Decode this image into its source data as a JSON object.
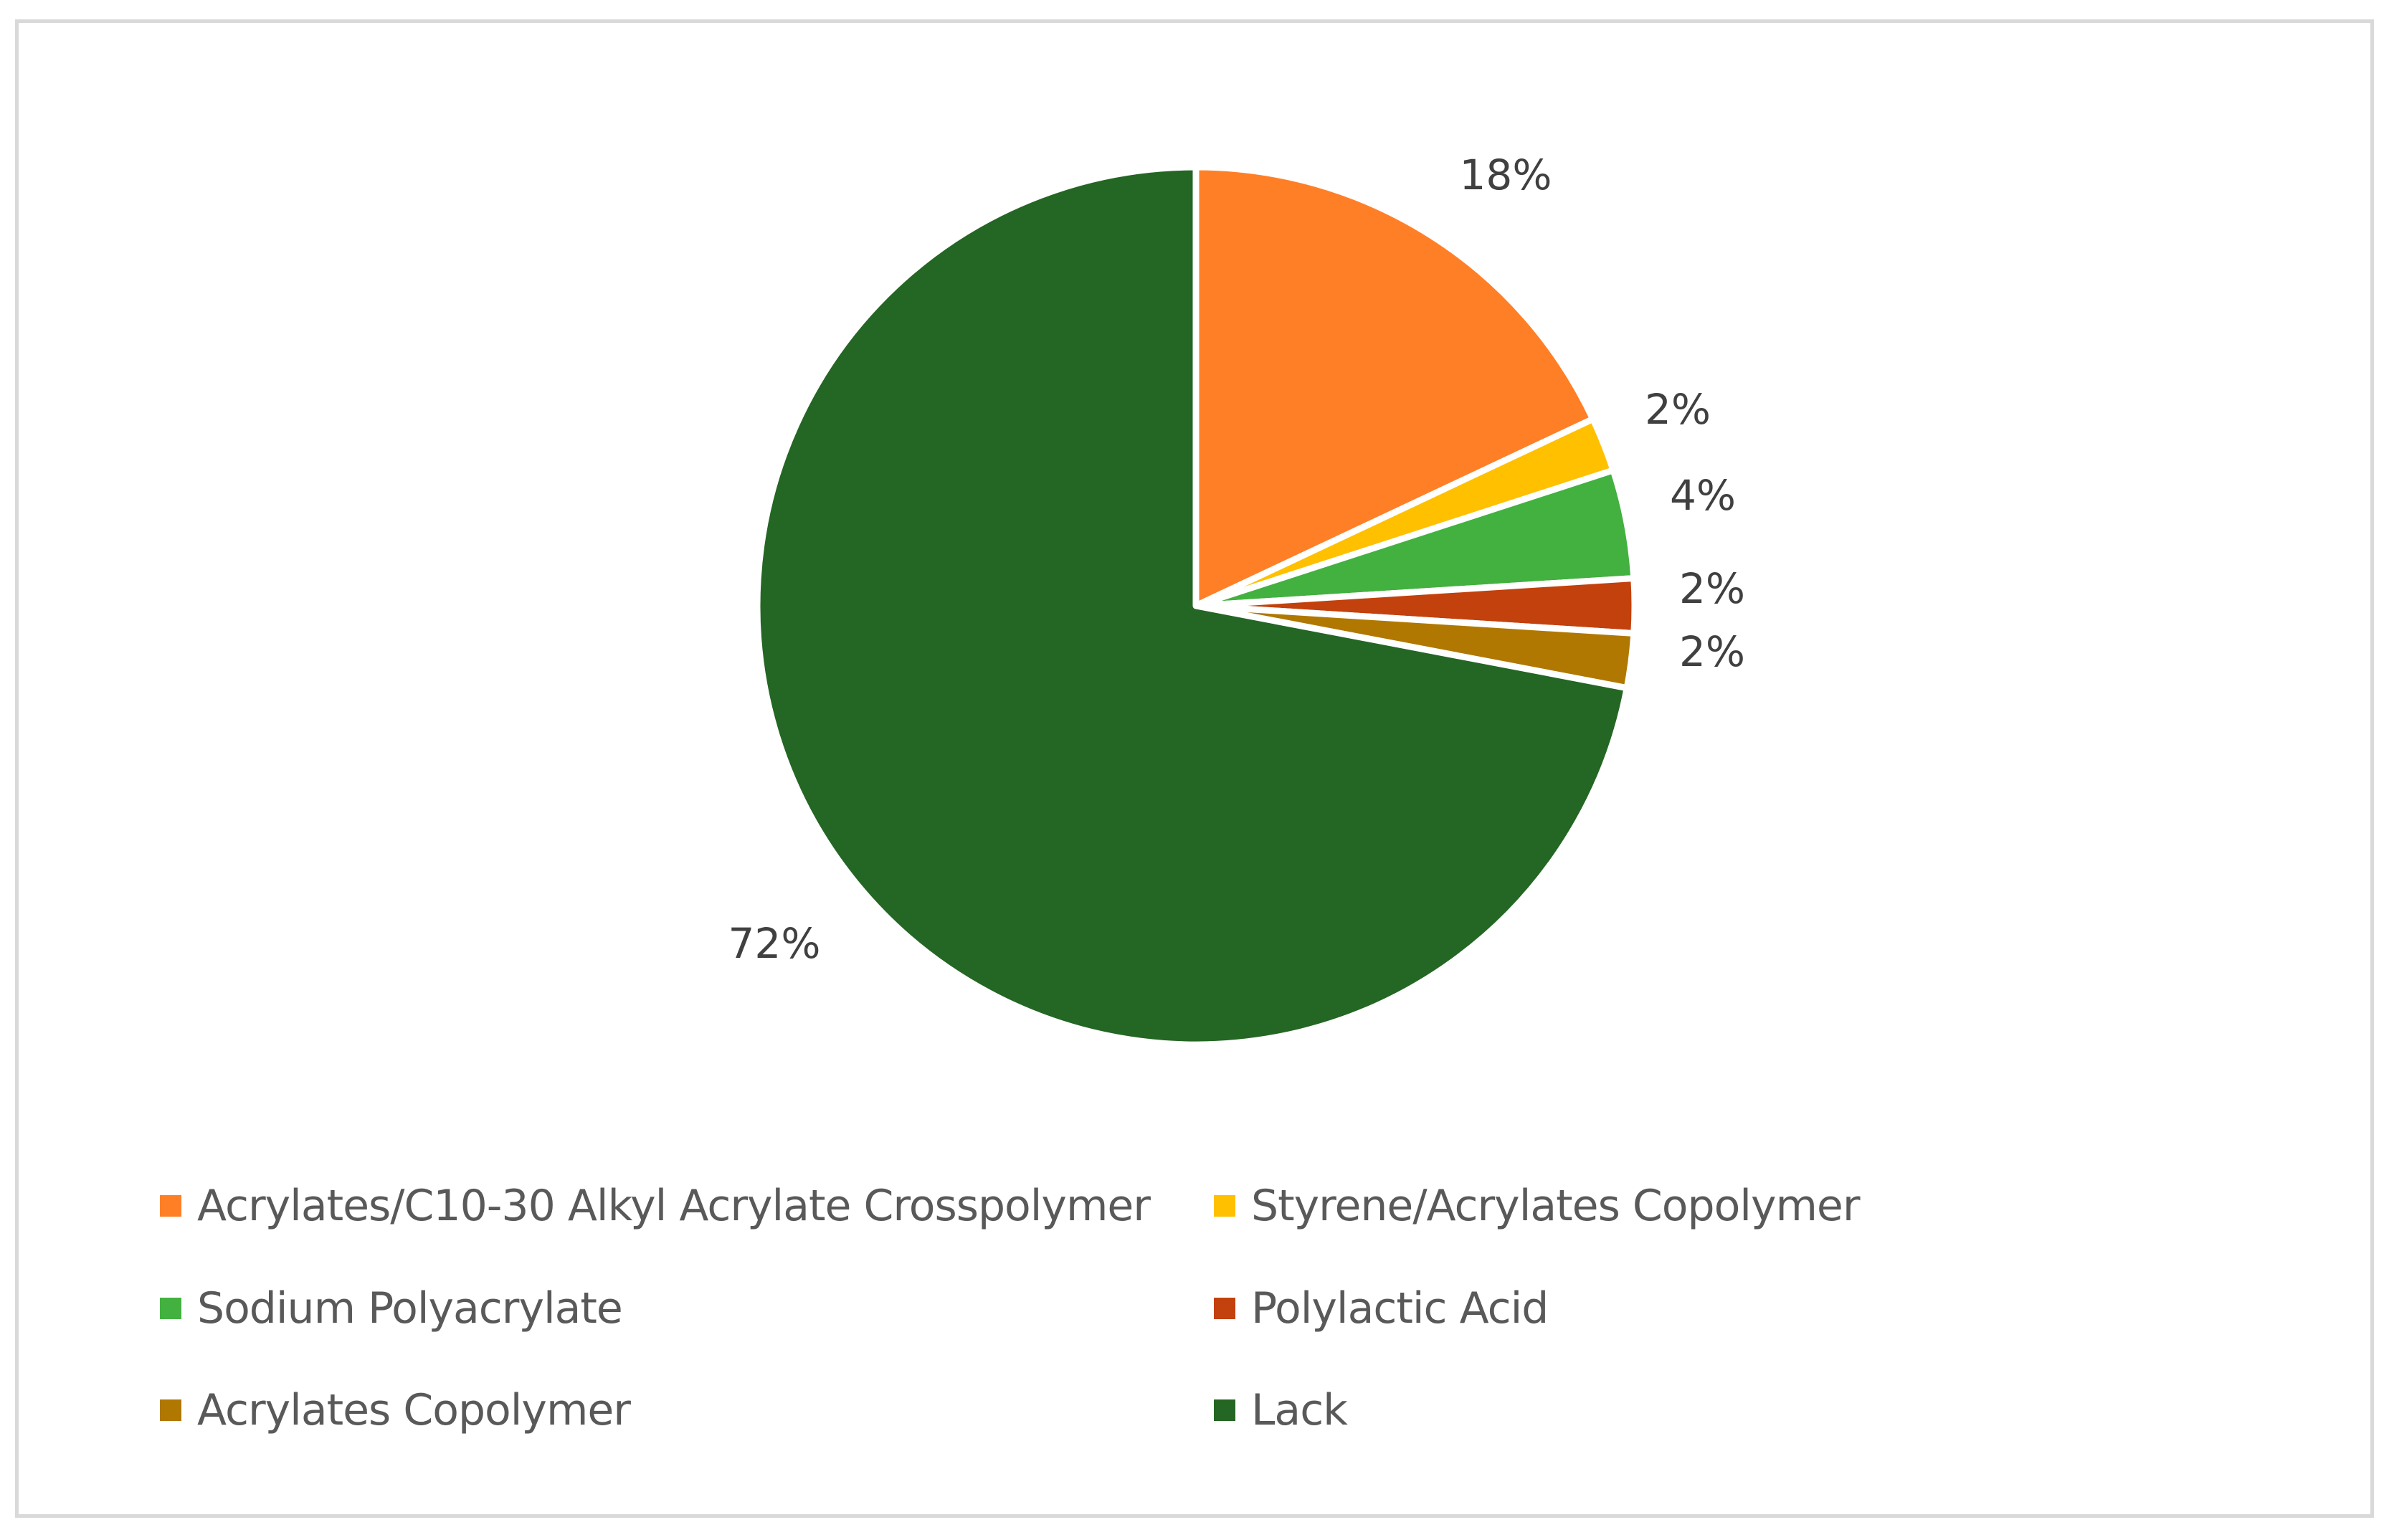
{
  "chart_data": {
    "type": "pie",
    "title": "",
    "categories": [
      "Acrylates/C10-30 Alkyl Acrylate Crosspolymer",
      "Styrene/Acrylates Copolymer",
      "Sodium Polyacrylate",
      "Polylactic Acid",
      "Acrylates Copolymer",
      "Lack"
    ],
    "values": [
      18,
      2,
      4,
      2,
      2,
      72
    ],
    "labels": [
      "18%",
      "2%",
      "4%",
      "2%",
      "2%",
      "72%"
    ],
    "colors": [
      "#ff7f27",
      "#ffc000",
      "#42b13f",
      "#c2410c",
      "#b07800",
      "#246623"
    ],
    "legend_position": "bottom",
    "start_angle": "12 o'clock, clockwise"
  }
}
